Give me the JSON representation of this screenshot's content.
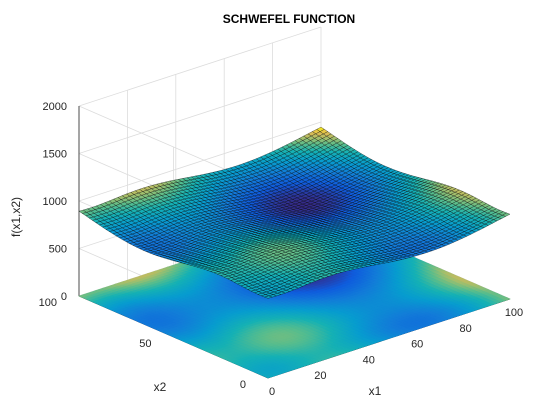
{
  "chart_data": {
    "type": "surface",
    "title": "SCHWEFEL FUNCTION",
    "xlabel": "x1",
    "ylabel": "x2",
    "zlabel": "f(x1,x2)",
    "function": "418.9829*2 - x1*sin(sqrt(|x1|)) - x2*sin(sqrt(|x2|))",
    "xlim": [
      0,
      100
    ],
    "ylim": [
      0,
      100
    ],
    "zlim": [
      0,
      2000
    ],
    "x_ticks": [
      "0",
      "20",
      "40",
      "60",
      "80",
      "100"
    ],
    "y_ticks": [
      "0",
      "50",
      "100"
    ],
    "z_ticks": [
      "0",
      "500",
      "1000",
      "1500",
      "2000"
    ],
    "colormap": "parula",
    "grid": true,
    "contour_projection": "floor",
    "colors": {
      "low": "#352a87",
      "mid": "#1fb7a0",
      "high": "#f9fb0e",
      "mesh_edge": "#000000"
    }
  }
}
